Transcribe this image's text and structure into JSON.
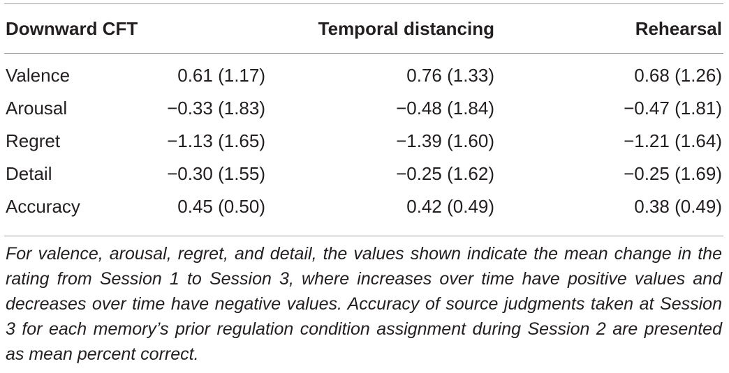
{
  "table": {
    "headers": [
      "Downward CFT",
      "",
      "Temporal distancing",
      "Rehearsal"
    ],
    "rows": [
      {
        "label": "Valence",
        "values": [
          "0.61 (1.17)",
          "0.76 (1.33)",
          "0.68 (1.26)"
        ]
      },
      {
        "label": "Arousal",
        "values": [
          "−0.33 (1.83)",
          "−0.48 (1.84)",
          "−0.47 (1.81)"
        ]
      },
      {
        "label": "Regret",
        "values": [
          "−1.13 (1.65)",
          "−1.39 (1.60)",
          "−1.21 (1.64)"
        ]
      },
      {
        "label": "Detail",
        "values": [
          "−0.30 (1.55)",
          "−0.25 (1.62)",
          "−0.25 (1.69)"
        ]
      },
      {
        "label": "Accuracy",
        "values": [
          "0.45 (0.50)",
          "0.42 (0.49)",
          "0.38 (0.49)"
        ]
      }
    ]
  },
  "footnote": "For valence, arousal, regret, and detail, the values shown indicate the mean change in the rating from Session 1 to Session 3, where increases over time have positive values and decreases over time have negative values. Accuracy of source judgments taken at Session 3 for each memory’s prior regulation condition assignment during Session 2 are presented as mean percent correct."
}
